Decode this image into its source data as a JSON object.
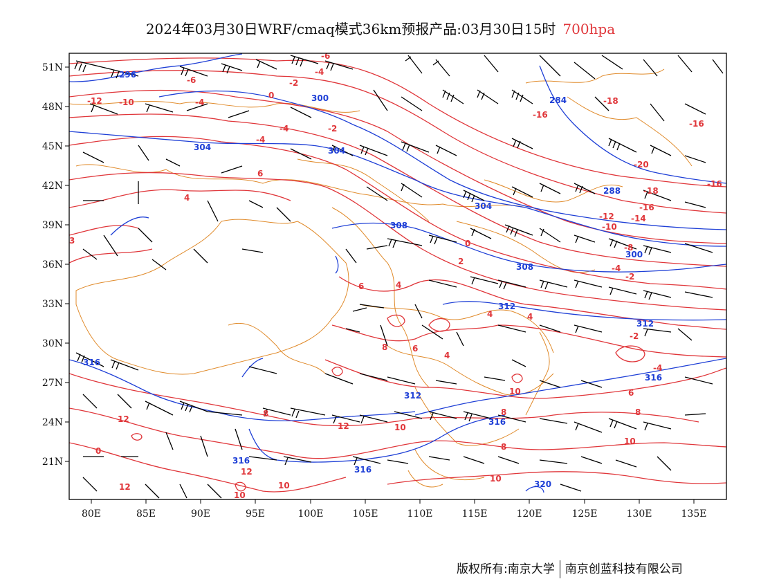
{
  "title": {
    "main": "2024年03月30日WRF/cmaq模式36km预报产品:03月30日15时",
    "level": "700hpa"
  },
  "axes": {
    "lon_labels": [
      "80E",
      "85E",
      "90E",
      "95E",
      "100E",
      "105E",
      "110E",
      "115E",
      "120E",
      "125E",
      "130E",
      "135E"
    ],
    "lat_labels": [
      "51N",
      "48N",
      "45N",
      "42N",
      "39N",
      "36N",
      "33N",
      "30N",
      "27N",
      "24N",
      "21N"
    ]
  },
  "legend_colors": {
    "temperature": "#e0363a",
    "geopotential_height": "#1e3fd6",
    "boundaries": "#e08a2a",
    "wind_barbs": "#000000"
  },
  "temperature_labels": [
    "-6",
    "-4",
    "-6",
    "-2",
    "-12",
    "-10",
    "-4",
    "0",
    "-2",
    "-4",
    "-4",
    "6",
    "4",
    "3",
    "-16",
    "-18",
    "-16",
    "-20",
    "-16",
    "-18",
    "-16",
    "-12",
    "-10",
    "-14",
    "-8",
    "-4",
    "-2",
    "0",
    "2",
    "6",
    "4",
    "-2",
    "4",
    "4",
    "6",
    "8",
    "6",
    "-4",
    "8",
    "12",
    "12",
    "12",
    "8",
    "10",
    "0",
    "12",
    "10",
    "10",
    "10",
    "8",
    "10",
    "10",
    "8",
    "4"
  ],
  "height_labels": [
    "296",
    "300",
    "304",
    "304",
    "308",
    "304",
    "312",
    "284",
    "288",
    "300",
    "308",
    "312",
    "316",
    "316",
    "316",
    "312",
    "316",
    "316",
    "320"
  ],
  "footer": {
    "copyright": "版权所有:南京大学",
    "company": "南京创蓝科技有限公司"
  }
}
